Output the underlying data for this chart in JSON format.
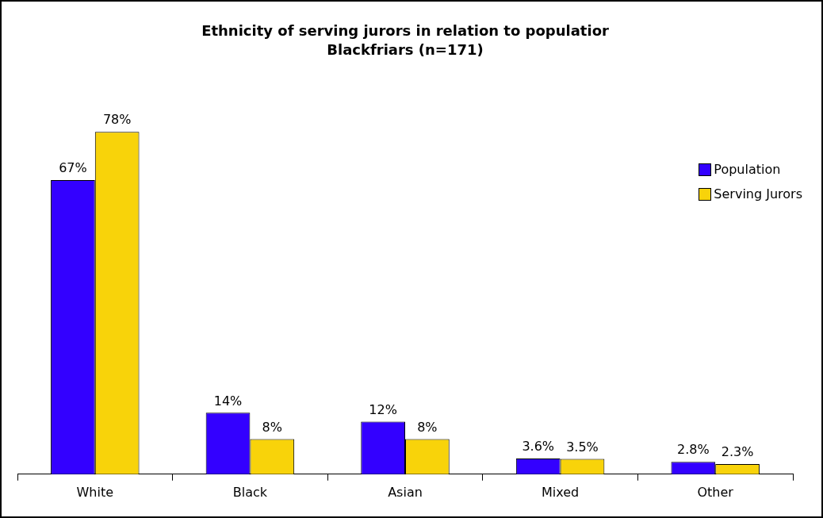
{
  "chart_data": {
    "type": "bar",
    "title": "Ethnicity of serving jurors in relation to populatior",
    "subtitle": "Blackfriars (n=171)",
    "categories": [
      "White",
      "Black",
      "Asian",
      "Mixed",
      "Other"
    ],
    "series": [
      {
        "name": "Population",
        "color": "#3300ff",
        "values": [
          67,
          14,
          12,
          3.6,
          2.8
        ],
        "value_labels": [
          "67%",
          "14%",
          "12%",
          "3.6%",
          "2.8%"
        ]
      },
      {
        "name": "Serving Jurors",
        "color": "#f8d30a",
        "values": [
          78,
          8,
          8,
          3.5,
          2.3
        ],
        "value_labels": [
          "78%",
          "8%",
          "8%",
          "3.5%",
          "2.3%"
        ]
      }
    ],
    "legend": "top right",
    "grid": false
  }
}
